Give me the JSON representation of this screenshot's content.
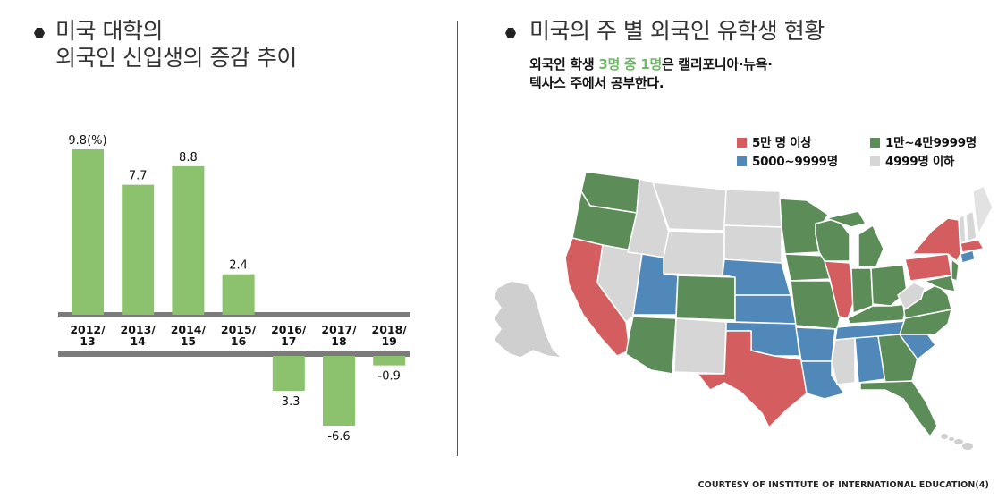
{
  "left": {
    "title_line1": "미국 대학의",
    "title_line2": "외국인 신입생의 증감 추이"
  },
  "right": {
    "title": "미국의 주 별 외국인 유학생 현황",
    "subtitle_line1_a": "외국인 학생 ",
    "subtitle_line1_hl": "3명 중 1명",
    "subtitle_line1_b": "은 캘리포니아·뉴욕·",
    "subtitle_line2": "텍사스 주에서 공부한다."
  },
  "credit": "COURTESY OF INSTITUTE OF INTERNATIONAL EDUCATION(4)",
  "colors": {
    "bar": "#8cc26d",
    "band": "#7b7b7b",
    "red": "#d35d5f",
    "green": "#5c8d59",
    "blue": "#4f88b9",
    "gray": "#d6d6d6",
    "alaska": "#cfcfcf"
  },
  "chart_data": [
    {
      "type": "bar",
      "title": "미국 대학의 외국인 신입생의 증감 추이",
      "categories": [
        "2012/\n13",
        "2013/\n14",
        "2014/\n15",
        "2015/\n16",
        "2016/\n17",
        "2017/\n18",
        "2018/\n19"
      ],
      "values": [
        9.8,
        7.7,
        8.8,
        2.4,
        -3.3,
        -6.6,
        -0.9
      ],
      "data_labels": [
        "9.8(%)",
        "7.7",
        "8.8",
        "2.4",
        "-3.3",
        "-6.6",
        "-0.9"
      ],
      "ylim": [
        -6.6,
        9.8
      ],
      "grid": false
    },
    {
      "type": "map",
      "title": "미국의 주 별 외국인 유학생 현황",
      "legend_position": "top-right",
      "legend": [
        {
          "label": "5만 명 이상",
          "color": "#d35d5f"
        },
        {
          "label": "1만~4만9999명",
          "color": "#5c8d59"
        },
        {
          "label": "5000~9999명",
          "color": "#4f88b9"
        },
        {
          "label": "4999명 이하",
          "color": "#d6d6d6"
        }
      ]
    }
  ]
}
